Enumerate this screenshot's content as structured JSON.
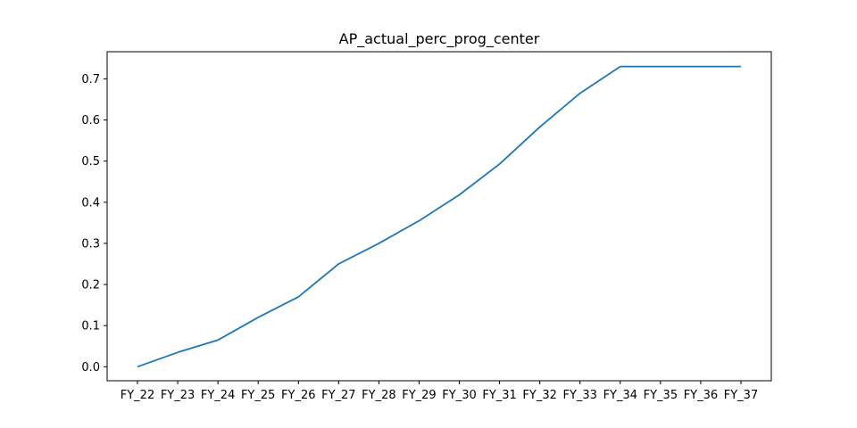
{
  "chart_data": {
    "type": "line",
    "title": "AP_actual_perc_prog_center",
    "xlabel": "",
    "ylabel": "",
    "categories": [
      "FY_22",
      "FY_23",
      "FY_24",
      "FY_25",
      "FY_26",
      "FY_27",
      "FY_28",
      "FY_29",
      "FY_30",
      "FY_31",
      "FY_32",
      "FY_33",
      "FY_34",
      "FY_35",
      "FY_36",
      "FY_37"
    ],
    "series": [
      {
        "values": [
          0.0,
          0.035,
          0.065,
          0.12,
          0.17,
          0.25,
          0.3,
          0.355,
          0.418,
          0.493,
          0.583,
          0.665,
          0.73,
          0.73,
          0.73,
          0.73
        ],
        "color": "#1f77b4"
      }
    ],
    "ylim": [
      -0.034,
      0.766
    ],
    "yticks": [
      0.0,
      0.1,
      0.2,
      0.3,
      0.4,
      0.5,
      0.6,
      0.7
    ],
    "ytick_labels": [
      "0.0",
      "0.1",
      "0.2",
      "0.3",
      "0.4",
      "0.5",
      "0.6",
      "0.7"
    ],
    "grid": false,
    "legend": "none"
  }
}
